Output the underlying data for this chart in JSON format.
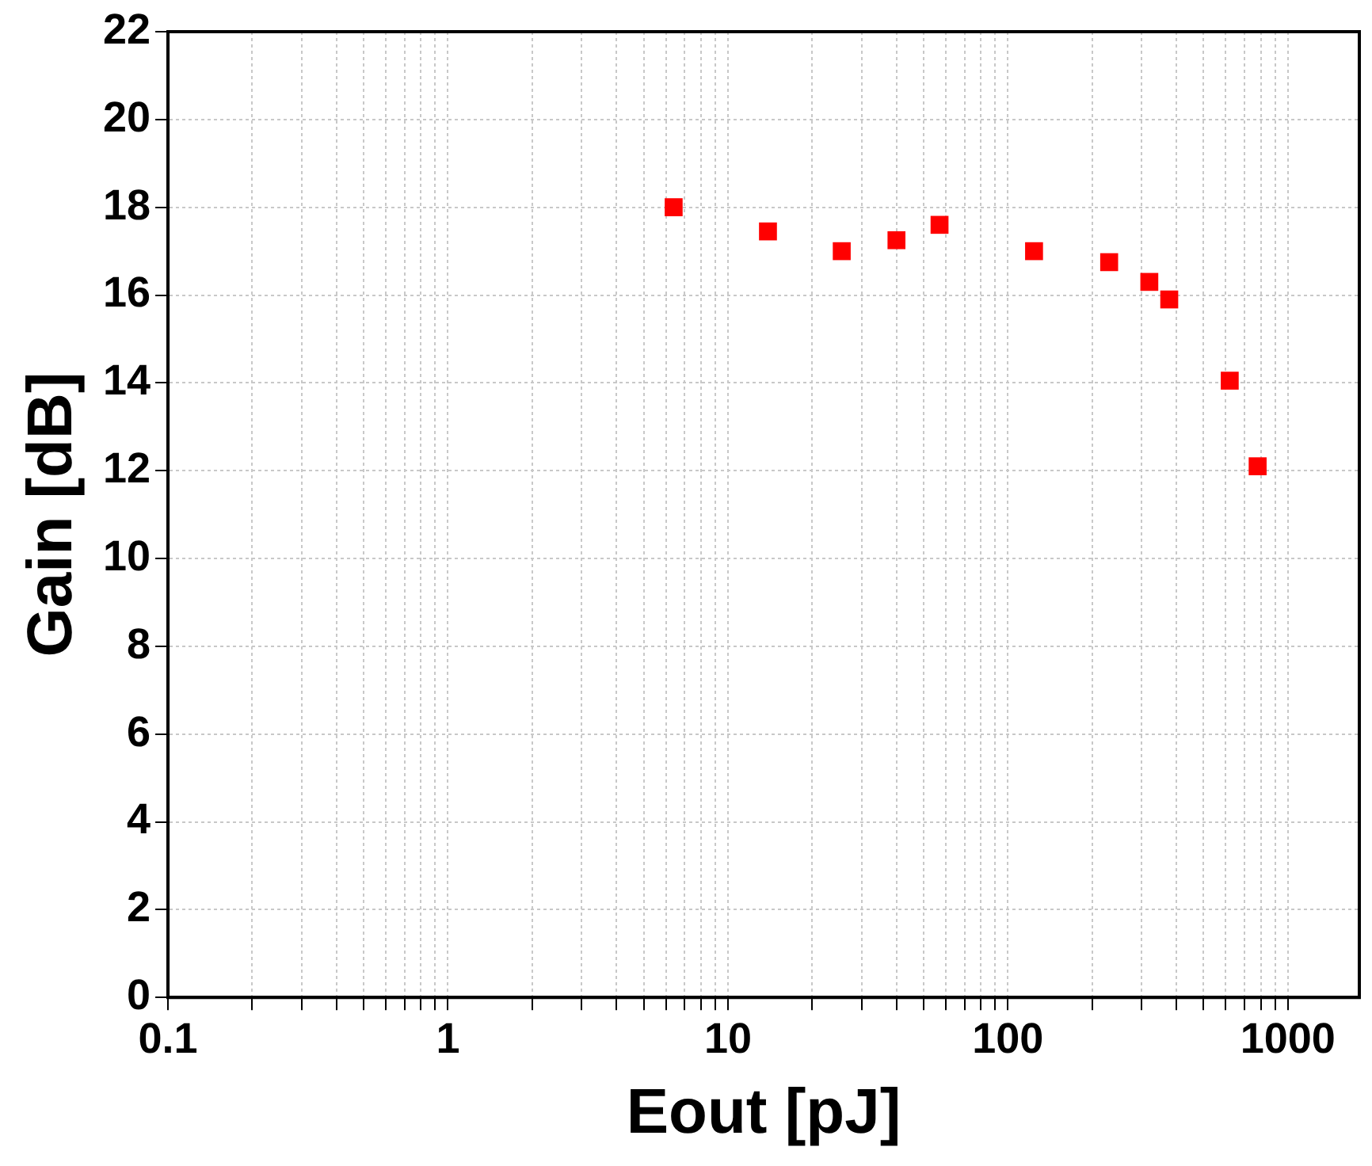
{
  "chart_data": {
    "type": "scatter",
    "xlabel": "Eout [pJ]",
    "ylabel": "Gain [dB]",
    "log": "x",
    "grid": true,
    "marker": "square",
    "xlim": [
      0.1,
      1800
    ],
    "ylim": [
      0,
      22
    ],
    "xticks": [
      0.1,
      {
        "value": 0.2,
        "label": null
      },
      {
        "value": 0.3,
        "label": null
      },
      {
        "value": 0.4,
        "label": null
      },
      {
        "value": 0.5,
        "label": null
      },
      {
        "value": 0.6,
        "label": null
      },
      {
        "value": 0.7,
        "label": null
      },
      {
        "value": 0.8,
        "label": null
      },
      {
        "value": 0.9,
        "label": null
      },
      1,
      {
        "value": 2,
        "label": null
      },
      {
        "value": 3,
        "label": null
      },
      {
        "value": 4,
        "label": null
      },
      {
        "value": 5,
        "label": null
      },
      {
        "value": 6,
        "label": null
      },
      {
        "value": 7,
        "label": null
      },
      {
        "value": 8,
        "label": null
      },
      {
        "value": 9,
        "label": null
      },
      10,
      {
        "value": 20,
        "label": null
      },
      {
        "value": 30,
        "label": null
      },
      {
        "value": 40,
        "label": null
      },
      {
        "value": 50,
        "label": null
      },
      {
        "value": 60,
        "label": null
      },
      {
        "value": 70,
        "label": null
      },
      {
        "value": 80,
        "label": null
      },
      {
        "value": 90,
        "label": null
      },
      100,
      {
        "value": 200,
        "label": null
      },
      {
        "value": 300,
        "label": null
      },
      {
        "value": 400,
        "label": null
      },
      {
        "value": 500,
        "label": null
      },
      {
        "value": 600,
        "label": null
      },
      {
        "value": 700,
        "label": null
      },
      {
        "value": 800,
        "label": null
      },
      {
        "value": 900,
        "label": null
      },
      1000
    ],
    "yticks": [
      0,
      2,
      4,
      6,
      8,
      10,
      12,
      14,
      16,
      18,
      20,
      22
    ],
    "series": [
      {
        "color": "#ff0000",
        "x": [
          6.4,
          13.9,
          25.5,
          40,
          57,
          124,
          230,
          320,
          377,
          620,
          780
        ],
        "values": [
          18.0,
          17.45,
          17.0,
          17.25,
          17.6,
          17.0,
          16.75,
          16.3,
          15.9,
          14.05,
          12.1
        ]
      }
    ]
  }
}
